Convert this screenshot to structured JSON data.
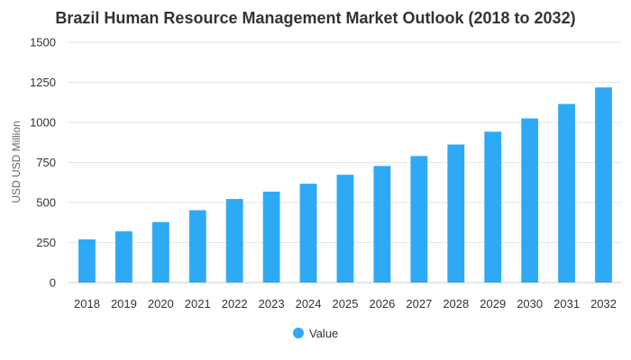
{
  "chart_data": {
    "type": "bar",
    "title": "Brazil Human Resource Management Market Outlook (2018 to 2032)",
    "xlabel": "",
    "ylabel": "USD USD Million",
    "ylim": [
      0,
      1500
    ],
    "yticks": [
      0,
      250,
      500,
      750,
      1000,
      1250,
      1500
    ],
    "grid": true,
    "legend_position": "bottom-center",
    "categories": [
      "2018",
      "2019",
      "2020",
      "2021",
      "2022",
      "2023",
      "2024",
      "2025",
      "2026",
      "2027",
      "2028",
      "2029",
      "2030",
      "2031",
      "2032"
    ],
    "series": [
      {
        "name": "Value",
        "color": "#2eaaf5",
        "values": [
          270,
          320,
          378,
          452,
          522,
          568,
          617,
          673,
          728,
          790,
          862,
          942,
          1025,
          1115,
          1218
        ]
      }
    ]
  }
}
